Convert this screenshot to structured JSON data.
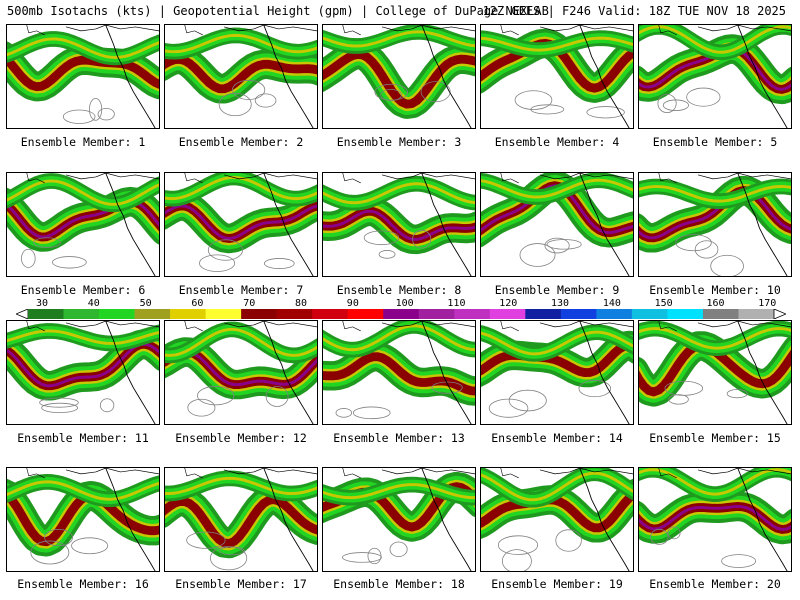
{
  "header": {
    "left": "500mb Isotachs (kts) | Geopotential Height (gpm) | College of DuPage NEXLAB",
    "right": "12Z GEFS | F246 Valid: 18Z TUE NOV 18 2025"
  },
  "panels": [
    {
      "label": "Ensemble Member: 1"
    },
    {
      "label": "Ensemble Member: 2"
    },
    {
      "label": "Ensemble Member: 3"
    },
    {
      "label": "Ensemble Member: 4"
    },
    {
      "label": "Ensemble Member: 5"
    },
    {
      "label": "Ensemble Member: 6"
    },
    {
      "label": "Ensemble Member: 7"
    },
    {
      "label": "Ensemble Member: 8"
    },
    {
      "label": "Ensemble Member: 9"
    },
    {
      "label": "Ensemble Member: 10"
    },
    {
      "label": "Ensemble Member: 11"
    },
    {
      "label": "Ensemble Member: 12"
    },
    {
      "label": "Ensemble Member: 13"
    },
    {
      "label": "Ensemble Member: 14"
    },
    {
      "label": "Ensemble Member: 15"
    },
    {
      "label": "Ensemble Member: 16"
    },
    {
      "label": "Ensemble Member: 17"
    },
    {
      "label": "Ensemble Member: 18"
    },
    {
      "label": "Ensemble Member: 19"
    },
    {
      "label": "Ensemble Member: 20"
    }
  ],
  "colorbar": {
    "labels": [
      "30",
      "40",
      "50",
      "60",
      "70",
      "80",
      "90",
      "100",
      "110",
      "120",
      "130",
      "140",
      "150",
      "160",
      "170"
    ],
    "colors": [
      "#1e7d1e",
      "#2fb82f",
      "#22d522",
      "#a0a020",
      "#e0d000",
      "#ffff30",
      "#8b0000",
      "#a00000",
      "#d00010",
      "#ff0000",
      "#8a008a",
      "#a020a0",
      "#c030c0",
      "#e040e0",
      "#1020a0",
      "#1040e0",
      "#1080e0",
      "#10c0e0",
      "#00e0ff",
      "#808080",
      "#b0b0b0"
    ]
  },
  "map_colors": {
    "jet_green_dark": "#1f9a1f",
    "jet_green": "#22d522",
    "jet_yellow": "#c8c800",
    "jet_darkred": "#8b0000",
    "jet_purple": "#8a008a",
    "jet_blue": "#2030b0",
    "coast": "#000000",
    "height_contour": "#808080"
  }
}
